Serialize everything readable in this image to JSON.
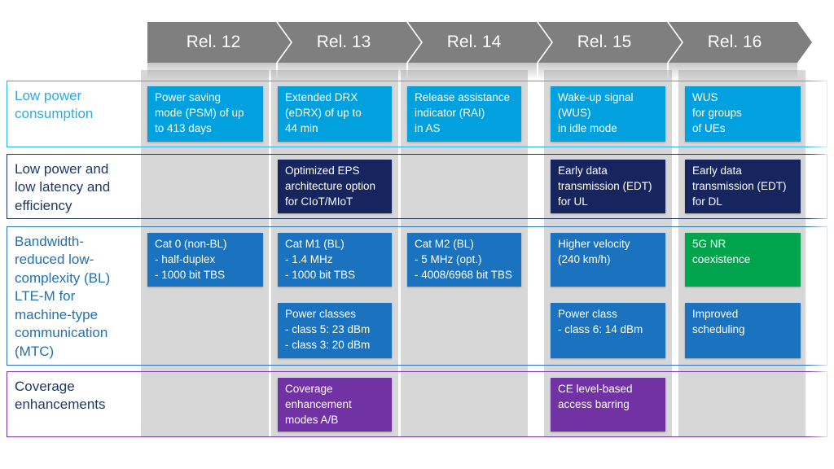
{
  "header": {
    "releases": [
      "Rel. 12",
      "Rel. 13",
      "Rel. 14",
      "Rel. 15",
      "Rel. 16"
    ]
  },
  "colors": {
    "chevron_gray": "#7F7F7F",
    "column_strip_gray": "#D7D7D7",
    "cell_cyan": "#00A1DE",
    "cell_navy": "#16255E",
    "cell_blue": "#1B72BE",
    "cell_green": "#00A44C",
    "cell_purple": "#7133A3",
    "row_border_colors": [
      "#2FB0E5",
      "#1F3864",
      "#2E75B6",
      "#7030A0"
    ]
  },
  "rows": [
    {
      "label": "Low power\nconsumption",
      "cells": {
        "rel12": "Power saving\nmode (PSM) of up\nto 413 days",
        "rel13": "Extended DRX\n(eDRX) of up to\n44 min",
        "rel14": "Release assistance\nindicator (RAI)\nin AS",
        "rel15": "Wake-up signal\n(WUS)\nin idle mode",
        "rel16": "WUS\nfor groups\nof UEs"
      }
    },
    {
      "label": "Low power and\nlow latency and\nefficiency",
      "cells": {
        "rel13": "Optimized EPS\narchitecture option\nfor CIoT/MIoT",
        "rel15": "Early data\ntransmission (EDT)\nfor UL",
        "rel16": "Early data\ntransmission (EDT)\nfor DL"
      }
    },
    {
      "label": "Bandwidth-\nreduced low-\ncomplexity (BL)\nLTE-M for\nmachine-type\ncommunication\n(MTC)",
      "cells_top": {
        "rel12": "Cat 0 (non-BL)\n- half-duplex\n- 1000 bit TBS",
        "rel13": "Cat M1 (BL)\n- 1.4 MHz\n- 1000 bit TBS",
        "rel14": "Cat M2 (BL)\n- 5 MHz (opt.)\n- 4008/6968 bit TBS",
        "rel15": "Higher velocity\n(240 km/h)",
        "rel16": "5G NR\ncoexistence"
      },
      "cells_bottom": {
        "rel13": "Power classes\n- class 5: 23 dBm\n- class 3: 20 dBm",
        "rel15": "Power class\n- class 6: 14 dBm",
        "rel16": "Improved\nscheduling"
      }
    },
    {
      "label": "Coverage\nenhancements",
      "cells": {
        "rel13": "Coverage\nenhancement\nmodes A/B",
        "rel15": "CE level-based\naccess barring"
      }
    }
  ]
}
